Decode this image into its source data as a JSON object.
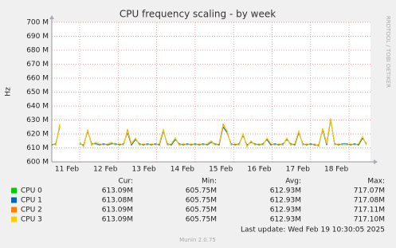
{
  "chart_data": {
    "type": "line",
    "title": "CPU frequency scaling - by week",
    "y_label": "Hz",
    "side_text": "RRDTOOL / TOBI OETIKER",
    "x_labels": [
      "11 Feb",
      "12 Feb",
      "13 Feb",
      "14 Feb",
      "15 Feb",
      "16 Feb",
      "17 Feb",
      "18 Feb"
    ],
    "ylim": [
      600,
      700
    ],
    "yticks": [
      {
        "value": 600,
        "label": "600 M"
      },
      {
        "value": 610,
        "label": "610 M"
      },
      {
        "value": 620,
        "label": "620 M"
      },
      {
        "value": 630,
        "label": "630 M"
      },
      {
        "value": 640,
        "label": "640 M"
      },
      {
        "value": 650,
        "label": "650 M"
      },
      {
        "value": 660,
        "label": "660 M"
      },
      {
        "value": 670,
        "label": "670 M"
      },
      {
        "value": 680,
        "label": "680 M"
      },
      {
        "value": 690,
        "label": "690 M"
      },
      {
        "value": 700,
        "label": "700 M"
      }
    ],
    "grid": true,
    "series": [
      {
        "name": "CPU 0",
        "color": "#00cc00",
        "values": [
          613,
          612,
          626,
          null,
          null,
          null,
          null,
          614,
          611,
          623,
          612,
          614,
          613,
          612,
          613,
          614,
          612,
          613,
          612,
          622,
          613,
          617,
          612,
          613,
          612,
          613,
          612,
          613,
          623,
          612,
          613,
          617,
          612,
          613,
          612,
          613,
          612,
          613,
          612,
          613,
          615,
          612,
          613,
          626,
          622,
          612,
          613,
          612,
          620,
          611,
          615,
          612,
          613,
          612,
          617,
          613,
          612,
          613,
          612,
          617,
          612,
          613,
          622,
          612,
          613,
          612,
          613,
          611,
          624,
          613,
          631,
          612,
          613,
          612,
          612,
          613,
          612,
          613,
          618,
          612
        ]
      },
      {
        "name": "CPU 1",
        "color": "#0066b3",
        "values": [
          612,
          613,
          625,
          null,
          null,
          null,
          null,
          613,
          612,
          622,
          613,
          613,
          612,
          613,
          612,
          613,
          613,
          612,
          613,
          621,
          612,
          616,
          613,
          612,
          613,
          612,
          613,
          612,
          622,
          613,
          612,
          616,
          613,
          612,
          613,
          612,
          613,
          612,
          613,
          612,
          614,
          613,
          612,
          625,
          621,
          613,
          612,
          613,
          619,
          612,
          614,
          613,
          612,
          613,
          616,
          612,
          613,
          612,
          613,
          616,
          613,
          612,
          621,
          613,
          612,
          613,
          612,
          612,
          623,
          612,
          630,
          613,
          612,
          613,
          613,
          612,
          613,
          612,
          617,
          613
        ]
      },
      {
        "name": "CPU 2",
        "color": "#ff8000",
        "values": [
          613,
          612,
          627,
          null,
          null,
          null,
          null,
          614,
          611,
          623,
          612,
          614,
          613,
          612,
          613,
          614,
          612,
          613,
          612,
          623,
          613,
          617,
          612,
          613,
          612,
          613,
          612,
          613,
          623,
          612,
          613,
          617,
          612,
          613,
          612,
          613,
          612,
          613,
          612,
          613,
          615,
          612,
          613,
          627,
          622,
          612,
          613,
          612,
          620,
          611,
          615,
          612,
          613,
          612,
          617,
          613,
          612,
          613,
          612,
          617,
          612,
          613,
          622,
          612,
          613,
          612,
          613,
          611,
          624,
          613,
          631,
          612,
          613,
          612,
          612,
          613,
          612,
          613,
          618,
          612
        ]
      },
      {
        "name": "CPU 3",
        "color": "#ffcc00",
        "values": [
          613,
          612,
          626,
          null,
          null,
          null,
          null,
          614,
          611,
          623,
          612,
          614,
          613,
          612,
          613,
          614,
          612,
          613,
          612,
          622,
          613,
          617,
          612,
          613,
          612,
          613,
          612,
          613,
          623,
          612,
          613,
          617,
          612,
          613,
          612,
          613,
          612,
          613,
          612,
          613,
          615,
          612,
          613,
          626,
          622,
          612,
          613,
          612,
          620,
          611,
          615,
          612,
          613,
          612,
          617,
          613,
          612,
          613,
          612,
          617,
          612,
          613,
          622,
          612,
          613,
          612,
          613,
          611,
          624,
          613,
          631,
          612,
          613,
          612,
          612,
          613,
          612,
          613,
          618,
          612
        ]
      }
    ],
    "legend_headers": [
      "Cur:",
      "Min:",
      "Avg:",
      "Max:"
    ],
    "legend_stats": [
      [
        "613.09M",
        "605.75M",
        "612.93M",
        "717.07M"
      ],
      [
        "613.08M",
        "605.75M",
        "612.93M",
        "717.08M"
      ],
      [
        "613.09M",
        "605.75M",
        "612.93M",
        "717.11M"
      ],
      [
        "613.09M",
        "605.75M",
        "612.93M",
        "717.10M"
      ]
    ],
    "last_update": "Last update: Wed Feb 19 10:30:05 2025",
    "footer": "Munin 2.0.75"
  }
}
